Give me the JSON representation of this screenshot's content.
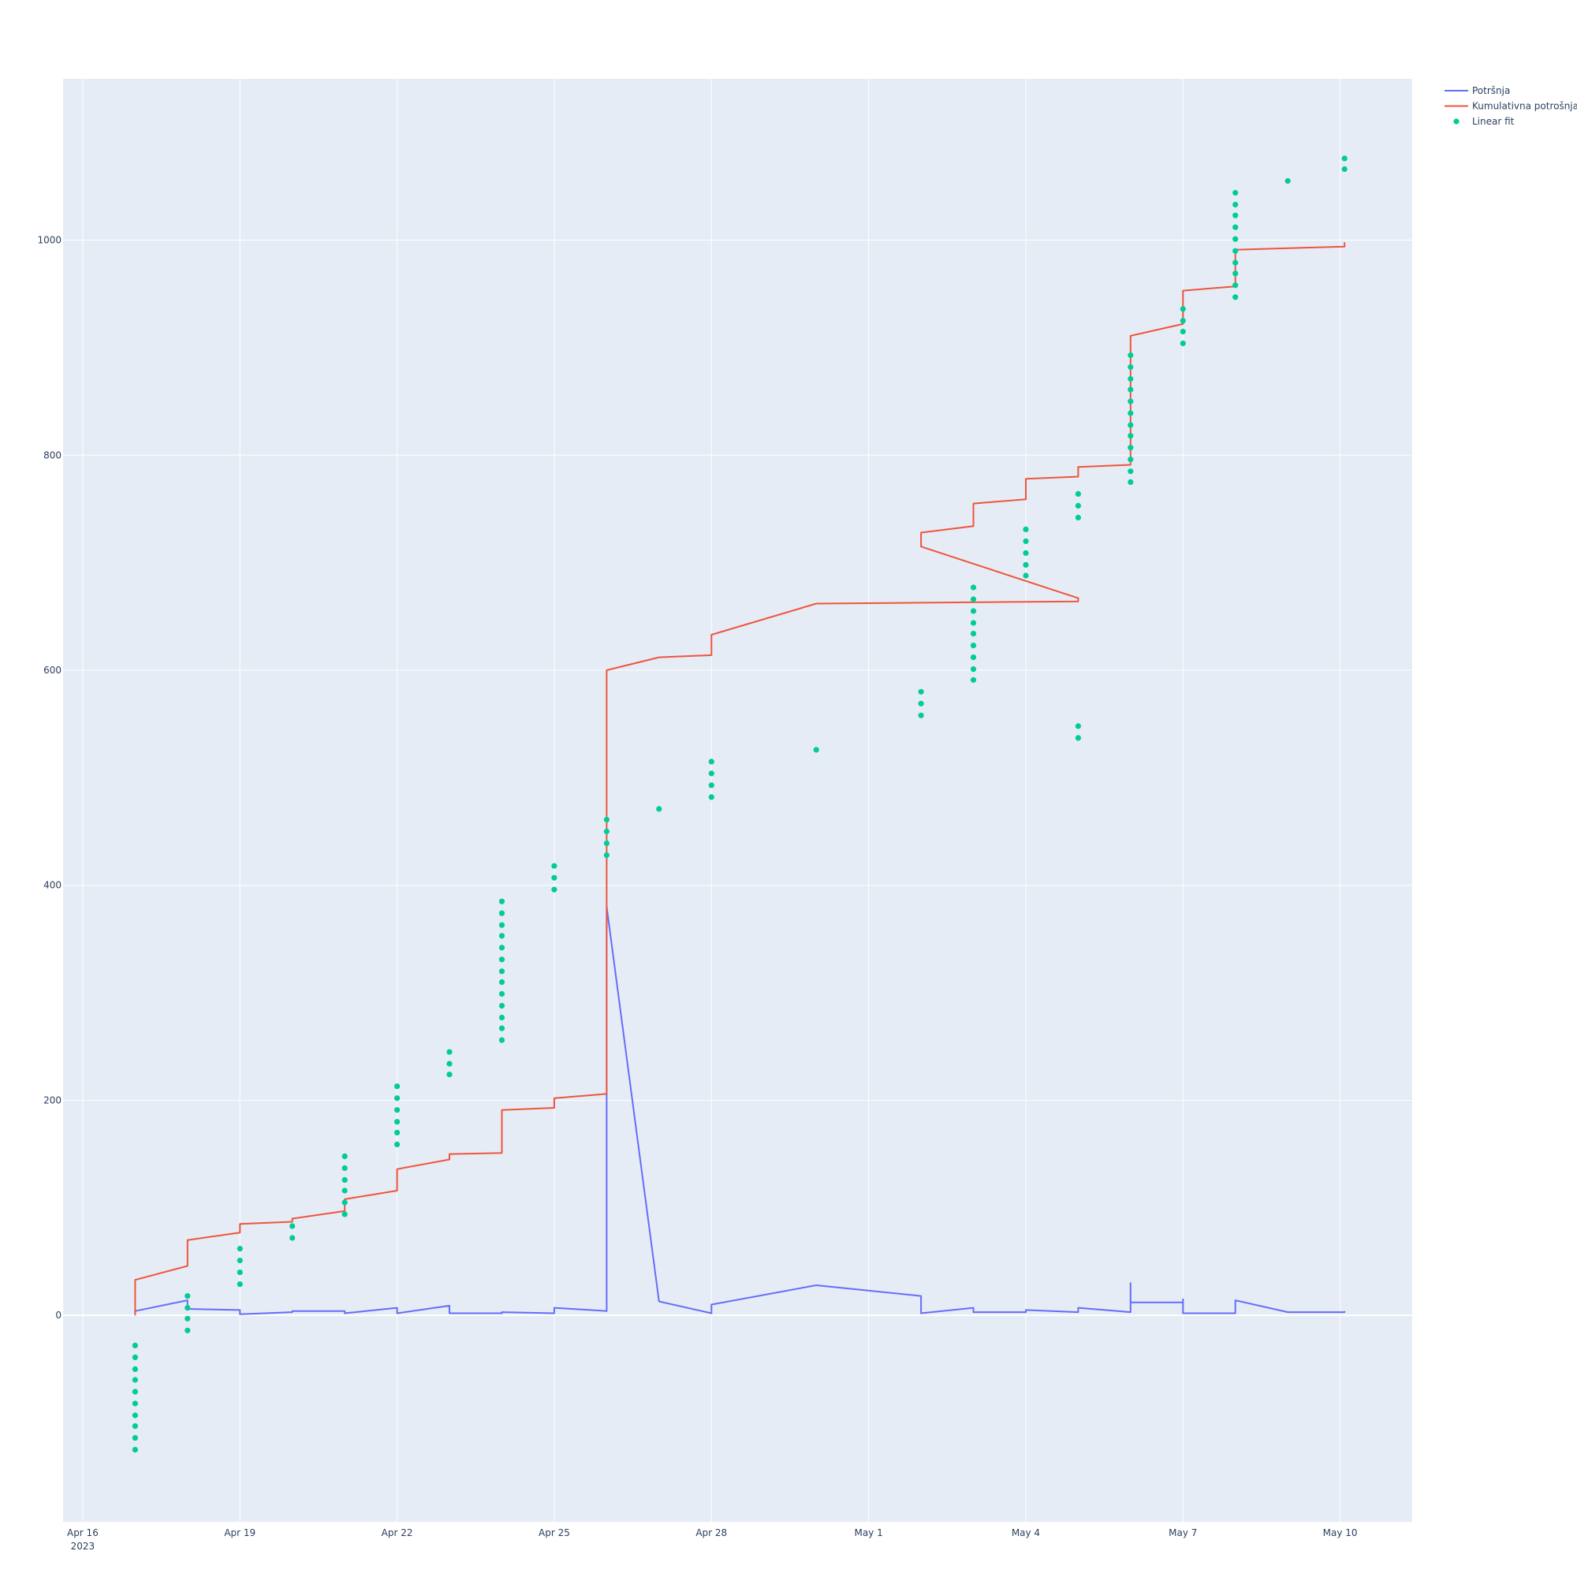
{
  "chart_data": {
    "type": "line",
    "title": "",
    "xlabel": "",
    "ylabel": "",
    "x_axis": {
      "type": "date",
      "range": [
        "2023-04-15T15:00",
        "2023-05-11T09:00"
      ],
      "ticks": [
        {
          "date": "2023-04-16",
          "label": "Apr 16",
          "sublabel": "2023"
        },
        {
          "date": "2023-04-19",
          "label": "Apr 19"
        },
        {
          "date": "2023-04-22",
          "label": "Apr 22"
        },
        {
          "date": "2023-04-25",
          "label": "Apr 25"
        },
        {
          "date": "2023-04-28",
          "label": "Apr 28"
        },
        {
          "date": "2023-05-01",
          "label": "May 1"
        },
        {
          "date": "2023-05-04",
          "label": "May 4"
        },
        {
          "date": "2023-05-07",
          "label": "May 7"
        },
        {
          "date": "2023-05-10",
          "label": "May 10"
        }
      ]
    },
    "y_axis": {
      "range": [
        -192,
        1150
      ],
      "ticks": [
        {
          "value": 0,
          "label": "0"
        },
        {
          "value": 200,
          "label": "200"
        },
        {
          "value": 400,
          "label": "400"
        },
        {
          "value": 600,
          "label": "600"
        },
        {
          "value": 800,
          "label": "800"
        },
        {
          "value": 1000,
          "label": "1000"
        }
      ]
    },
    "grid": true,
    "legend_position": "top-right",
    "series": [
      {
        "name": "Potršnja",
        "mode": "lines",
        "color": "#636efa",
        "points": [
          [
            "2023-04-17T00:00",
            3
          ],
          [
            "2023-04-17T00:00",
            4
          ],
          [
            "2023-04-18T00:00",
            14
          ],
          [
            "2023-04-18T00:00",
            6
          ],
          [
            "2023-04-19T00:00",
            5
          ],
          [
            "2023-04-19T00:00",
            1
          ],
          [
            "2023-04-20T00:00",
            3
          ],
          [
            "2023-04-20T00:00",
            4
          ],
          [
            "2023-04-21T00:00",
            4
          ],
          [
            "2023-04-21T00:00",
            2
          ],
          [
            "2023-04-22T00:00",
            7
          ],
          [
            "2023-04-22T00:00",
            2
          ],
          [
            "2023-04-23T00:00",
            9
          ],
          [
            "2023-04-23T00:00",
            2
          ],
          [
            "2023-04-24T00:00",
            2
          ],
          [
            "2023-04-24T00:00",
            3
          ],
          [
            "2023-04-25T00:00",
            2
          ],
          [
            "2023-04-25T00:00",
            7
          ],
          [
            "2023-04-26T00:00",
            4
          ],
          [
            "2023-04-26T00:00",
            380
          ],
          [
            "2023-04-27T00:00",
            13
          ],
          [
            "2023-04-28T00:00",
            2
          ],
          [
            "2023-04-28T00:00",
            10
          ],
          [
            "2023-04-30T00:00",
            28
          ],
          [
            "2023-05-02T00:00",
            18
          ],
          [
            "2023-05-02T00:00",
            12
          ],
          [
            "2023-05-02T00:00",
            2
          ],
          [
            "2023-05-03T00:00",
            7
          ],
          [
            "2023-05-03T00:00",
            3
          ],
          [
            "2023-05-04T00:00",
            3
          ],
          [
            "2023-05-04T00:00",
            5
          ],
          [
            "2023-05-05T00:00",
            3
          ],
          [
            "2023-05-05T00:00",
            7
          ],
          [
            "2023-05-06T00:00",
            3
          ],
          [
            "2023-05-06T00:00",
            30
          ],
          [
            "2023-05-06T00:00",
            12
          ],
          [
            "2023-05-07T00:00",
            12
          ],
          [
            "2023-05-07T00:00",
            15
          ],
          [
            "2023-05-07T00:00",
            2
          ],
          [
            "2023-05-08T00:00",
            2
          ],
          [
            "2023-05-08T00:00",
            14
          ],
          [
            "2023-05-09T00:00",
            3
          ],
          [
            "2023-05-10T02:00",
            3
          ],
          [
            "2023-05-10T02:00",
            4
          ]
        ]
      },
      {
        "name": "Kumulativna potrošnja",
        "mode": "lines",
        "color": "#ef553b",
        "points": [
          [
            "2023-04-17T00:00",
            0
          ],
          [
            "2023-04-17T00:00",
            33
          ],
          [
            "2023-04-18T00:00",
            46
          ],
          [
            "2023-04-18T00:00",
            70
          ],
          [
            "2023-04-19T00:00",
            77
          ],
          [
            "2023-04-19T00:00",
            85
          ],
          [
            "2023-04-20T00:00",
            87
          ],
          [
            "2023-04-20T00:00",
            90
          ],
          [
            "2023-04-21T00:00",
            97
          ],
          [
            "2023-04-21T00:00",
            108
          ],
          [
            "2023-04-22T00:00",
            116
          ],
          [
            "2023-04-22T00:00",
            136
          ],
          [
            "2023-04-23T00:00",
            145
          ],
          [
            "2023-04-23T00:00",
            150
          ],
          [
            "2023-04-24T00:00",
            151
          ],
          [
            "2023-04-24T00:00",
            191
          ],
          [
            "2023-04-25T00:00",
            193
          ],
          [
            "2023-04-25T00:00",
            202
          ],
          [
            "2023-04-26T00:00",
            206
          ],
          [
            "2023-04-26T00:00",
            600
          ],
          [
            "2023-04-27T00:00",
            612
          ],
          [
            "2023-04-28T00:00",
            614
          ],
          [
            "2023-04-28T00:00",
            633
          ],
          [
            "2023-04-30T00:00",
            662
          ],
          [
            "2023-05-05T00:00",
            664
          ],
          [
            "2023-05-05T00:00",
            667
          ],
          [
            "2023-05-02T00:00",
            715
          ],
          [
            "2023-05-02T00:00",
            728
          ],
          [
            "2023-05-03T00:00",
            734
          ],
          [
            "2023-05-03T00:00",
            755
          ],
          [
            "2023-05-04T00:00",
            759
          ],
          [
            "2023-05-04T00:00",
            778
          ],
          [
            "2023-05-05T00:00",
            780
          ],
          [
            "2023-05-05T00:00",
            789
          ],
          [
            "2023-05-06T00:00",
            791
          ],
          [
            "2023-05-06T00:00",
            911
          ],
          [
            "2023-05-07T00:00",
            922
          ],
          [
            "2023-05-07T00:00",
            953
          ],
          [
            "2023-05-08T00:00",
            957
          ],
          [
            "2023-05-08T00:00",
            991
          ],
          [
            "2023-05-10T02:00",
            994
          ],
          [
            "2023-05-10T02:00",
            998
          ]
        ]
      },
      {
        "name": "Linear fit",
        "mode": "markers",
        "color": "#00cc96",
        "points": [
          [
            "2023-04-17T00:00",
            -28
          ],
          [
            "2023-04-17T00:00",
            -39
          ],
          [
            "2023-04-17T00:00",
            -50
          ],
          [
            "2023-04-17T00:00",
            -60
          ],
          [
            "2023-04-17T00:00",
            -71
          ],
          [
            "2023-04-17T00:00",
            -82
          ],
          [
            "2023-04-17T00:00",
            -93
          ],
          [
            "2023-04-17T00:00",
            -103
          ],
          [
            "2023-04-17T00:00",
            -114
          ],
          [
            "2023-04-17T00:00",
            -125
          ],
          [
            "2023-04-18T00:00",
            18
          ],
          [
            "2023-04-18T00:00",
            7
          ],
          [
            "2023-04-18T00:00",
            -3
          ],
          [
            "2023-04-18T00:00",
            -14
          ],
          [
            "2023-04-19T00:00",
            62
          ],
          [
            "2023-04-19T00:00",
            51
          ],
          [
            "2023-04-19T00:00",
            40
          ],
          [
            "2023-04-19T00:00",
            29
          ],
          [
            "2023-04-20T00:00",
            83
          ],
          [
            "2023-04-20T00:00",
            72
          ],
          [
            "2023-04-21T00:00",
            148
          ],
          [
            "2023-04-21T00:00",
            137
          ],
          [
            "2023-04-21T00:00",
            126
          ],
          [
            "2023-04-21T00:00",
            116
          ],
          [
            "2023-04-21T00:00",
            105
          ],
          [
            "2023-04-21T00:00",
            94
          ],
          [
            "2023-04-22T00:00",
            213
          ],
          [
            "2023-04-22T00:00",
            202
          ],
          [
            "2023-04-22T00:00",
            191
          ],
          [
            "2023-04-22T00:00",
            180
          ],
          [
            "2023-04-22T00:00",
            170
          ],
          [
            "2023-04-22T00:00",
            159
          ],
          [
            "2023-04-23T00:00",
            245
          ],
          [
            "2023-04-23T00:00",
            234
          ],
          [
            "2023-04-23T00:00",
            224
          ],
          [
            "2023-04-24T00:00",
            385
          ],
          [
            "2023-04-24T00:00",
            374
          ],
          [
            "2023-04-24T00:00",
            363
          ],
          [
            "2023-04-24T00:00",
            353
          ],
          [
            "2023-04-24T00:00",
            342
          ],
          [
            "2023-04-24T00:00",
            331
          ],
          [
            "2023-04-24T00:00",
            320
          ],
          [
            "2023-04-24T00:00",
            310
          ],
          [
            "2023-04-24T00:00",
            299
          ],
          [
            "2023-04-24T00:00",
            288
          ],
          [
            "2023-04-24T00:00",
            277
          ],
          [
            "2023-04-24T00:00",
            267
          ],
          [
            "2023-04-24T00:00",
            256
          ],
          [
            "2023-04-25T00:00",
            418
          ],
          [
            "2023-04-25T00:00",
            407
          ],
          [
            "2023-04-25T00:00",
            396
          ],
          [
            "2023-04-26T00:00",
            461
          ],
          [
            "2023-04-26T00:00",
            450
          ],
          [
            "2023-04-26T00:00",
            439
          ],
          [
            "2023-04-26T00:00",
            428
          ],
          [
            "2023-04-27T00:00",
            471
          ],
          [
            "2023-04-28T00:00",
            515
          ],
          [
            "2023-04-28T00:00",
            504
          ],
          [
            "2023-04-28T00:00",
            493
          ],
          [
            "2023-04-28T00:00",
            482
          ],
          [
            "2023-04-30T00:00",
            526
          ],
          [
            "2023-05-02T00:00",
            580
          ],
          [
            "2023-05-02T00:00",
            569
          ],
          [
            "2023-05-02T00:00",
            558
          ],
          [
            "2023-05-03T00:00",
            677
          ],
          [
            "2023-05-03T00:00",
            666
          ],
          [
            "2023-05-03T00:00",
            655
          ],
          [
            "2023-05-03T00:00",
            644
          ],
          [
            "2023-05-03T00:00",
            634
          ],
          [
            "2023-05-03T00:00",
            623
          ],
          [
            "2023-05-03T00:00",
            612
          ],
          [
            "2023-05-03T00:00",
            601
          ],
          [
            "2023-05-03T00:00",
            591
          ],
          [
            "2023-05-04T00:00",
            731
          ],
          [
            "2023-05-04T00:00",
            720
          ],
          [
            "2023-05-04T00:00",
            709
          ],
          [
            "2023-05-04T00:00",
            698
          ],
          [
            "2023-05-04T00:00",
            688
          ],
          [
            "2023-05-05T00:00",
            764
          ],
          [
            "2023-05-05T00:00",
            753
          ],
          [
            "2023-05-05T00:00",
            742
          ],
          [
            "2023-05-05T00:00",
            548
          ],
          [
            "2023-05-05T00:00",
            537
          ],
          [
            "2023-05-06T00:00",
            893
          ],
          [
            "2023-05-06T00:00",
            882
          ],
          [
            "2023-05-06T00:00",
            871
          ],
          [
            "2023-05-06T00:00",
            861
          ],
          [
            "2023-05-06T00:00",
            850
          ],
          [
            "2023-05-06T00:00",
            839
          ],
          [
            "2023-05-06T00:00",
            828
          ],
          [
            "2023-05-06T00:00",
            818
          ],
          [
            "2023-05-06T00:00",
            807
          ],
          [
            "2023-05-06T00:00",
            796
          ],
          [
            "2023-05-06T00:00",
            785
          ],
          [
            "2023-05-06T00:00",
            775
          ],
          [
            "2023-05-07T00:00",
            936
          ],
          [
            "2023-05-07T00:00",
            925
          ],
          [
            "2023-05-07T00:00",
            915
          ],
          [
            "2023-05-07T00:00",
            904
          ],
          [
            "2023-05-08T00:00",
            1044
          ],
          [
            "2023-05-08T00:00",
            1033
          ],
          [
            "2023-05-08T00:00",
            1023
          ],
          [
            "2023-05-08T00:00",
            1012
          ],
          [
            "2023-05-08T00:00",
            1001
          ],
          [
            "2023-05-08T00:00",
            990
          ],
          [
            "2023-05-08T00:00",
            979
          ],
          [
            "2023-05-08T00:00",
            969
          ],
          [
            "2023-05-08T00:00",
            958
          ],
          [
            "2023-05-08T00:00",
            947
          ],
          [
            "2023-05-09T00:00",
            1055
          ],
          [
            "2023-05-10T02:00",
            1076
          ],
          [
            "2023-05-10T02:00",
            1066
          ]
        ]
      }
    ]
  }
}
